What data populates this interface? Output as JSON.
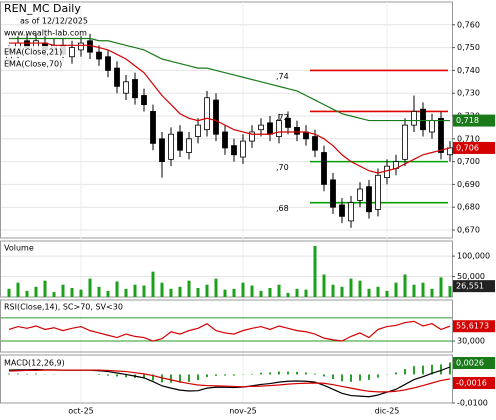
{
  "chart_data": [
    {
      "type": "candlestick",
      "title": "REN_MC Daily",
      "subtitle": "as of 12/12/2025",
      "source": "www.wealth-lab.com",
      "categories": [
        null,
        null,
        null,
        null,
        null,
        null,
        null,
        null,
        "oct-25",
        null,
        null,
        null,
        null,
        null,
        null,
        null,
        null,
        null,
        null,
        null,
        null,
        null,
        null,
        null,
        null,
        null,
        "nov-25",
        null,
        null,
        null,
        null,
        null,
        null,
        null,
        null,
        null,
        null,
        null,
        null,
        null,
        null,
        null,
        "dic-25",
        null,
        null,
        null,
        null,
        null,
        null,
        null
      ],
      "open": [
        0.745,
        0.748,
        0.753,
        0.749,
        0.752,
        0.75,
        0.751,
        0.746,
        0.749,
        0.753,
        0.748,
        0.746,
        0.741,
        0.73,
        0.736,
        0.729,
        0.722,
        0.71,
        0.701,
        0.713,
        0.704,
        0.711,
        0.714,
        0.727,
        0.713,
        0.707,
        0.702,
        0.709,
        0.714,
        0.717,
        0.711,
        0.719,
        0.715,
        0.713,
        0.711,
        0.704,
        0.692,
        0.681,
        0.674,
        0.683,
        0.689,
        0.679,
        0.693,
        0.697,
        0.701,
        0.716,
        0.723,
        0.713,
        0.719,
        0.703
      ],
      "high": [
        0.751,
        0.755,
        0.756,
        0.756,
        0.755,
        0.754,
        0.754,
        0.753,
        0.755,
        0.756,
        0.751,
        0.749,
        0.744,
        0.738,
        0.739,
        0.732,
        0.725,
        0.713,
        0.715,
        0.716,
        0.713,
        0.719,
        0.731,
        0.73,
        0.716,
        0.71,
        0.712,
        0.716,
        0.719,
        0.72,
        0.721,
        0.722,
        0.718,
        0.716,
        0.714,
        0.707,
        0.695,
        0.684,
        0.685,
        0.691,
        0.692,
        0.697,
        0.701,
        0.703,
        0.719,
        0.729,
        0.726,
        0.721,
        0.722,
        0.709
      ],
      "low": [
        0.742,
        0.745,
        0.747,
        0.746,
        0.746,
        0.747,
        0.744,
        0.743,
        0.746,
        0.745,
        0.742,
        0.737,
        0.73,
        0.727,
        0.725,
        0.722,
        0.705,
        0.693,
        0.698,
        0.702,
        0.701,
        0.708,
        0.711,
        0.709,
        0.703,
        0.7,
        0.699,
        0.706,
        0.711,
        0.709,
        0.708,
        0.712,
        0.709,
        0.707,
        0.702,
        0.687,
        0.677,
        0.673,
        0.671,
        0.68,
        0.675,
        0.676,
        0.69,
        0.694,
        0.698,
        0.713,
        0.711,
        0.71,
        0.701,
        0.7
      ],
      "close": [
        0.748,
        0.752,
        0.75,
        0.753,
        0.749,
        0.751,
        0.747,
        0.75,
        0.752,
        0.748,
        0.745,
        0.74,
        0.733,
        0.735,
        0.728,
        0.725,
        0.708,
        0.7,
        0.712,
        0.705,
        0.71,
        0.716,
        0.728,
        0.712,
        0.706,
        0.703,
        0.709,
        0.713,
        0.716,
        0.712,
        0.718,
        0.715,
        0.712,
        0.71,
        0.705,
        0.69,
        0.68,
        0.676,
        0.682,
        0.688,
        0.678,
        0.694,
        0.698,
        0.7,
        0.716,
        0.722,
        0.714,
        0.718,
        0.704,
        0.706
      ],
      "up_color": "#ffffff",
      "down_color": "#000000",
      "series": [
        {
          "name": "EMA(Close,21)",
          "color": "#d40000",
          "last_label": "0,706",
          "values": [
            0.752,
            0.752,
            0.752,
            0.752,
            0.752,
            0.751,
            0.751,
            0.751,
            0.751,
            0.751,
            0.75,
            0.749,
            0.747,
            0.745,
            0.742,
            0.739,
            0.734,
            0.729,
            0.725,
            0.721,
            0.719,
            0.718,
            0.719,
            0.718,
            0.716,
            0.714,
            0.713,
            0.712,
            0.712,
            0.712,
            0.713,
            0.713,
            0.713,
            0.713,
            0.712,
            0.71,
            0.707,
            0.703,
            0.7,
            0.698,
            0.696,
            0.695,
            0.696,
            0.697,
            0.699,
            0.701,
            0.703,
            0.704,
            0.705,
            0.706
          ]
        },
        {
          "name": "EMA(Close,70)",
          "color": "#1a7a1a",
          "last_label": "0,718",
          "values": [
            0.754,
            0.754,
            0.754,
            0.754,
            0.754,
            0.754,
            0.754,
            0.754,
            0.754,
            0.754,
            0.753,
            0.753,
            0.752,
            0.751,
            0.75,
            0.749,
            0.747,
            0.745,
            0.744,
            0.743,
            0.742,
            0.741,
            0.741,
            0.74,
            0.739,
            0.738,
            0.737,
            0.736,
            0.735,
            0.734,
            0.733,
            0.732,
            0.731,
            0.729,
            0.727,
            0.725,
            0.723,
            0.721,
            0.72,
            0.719,
            0.718,
            0.718,
            0.718,
            0.718,
            0.718,
            0.718,
            0.718,
            0.718,
            0.718,
            0.718
          ]
        }
      ],
      "levels": [
        {
          "value": 0.74,
          "label": ",74",
          "color": "#e00000"
        },
        {
          "value": 0.722,
          "label": ",72",
          "color": "#e00000"
        },
        {
          "value": 0.7,
          "label": ",70",
          "color": "#00a000"
        },
        {
          "value": 0.682,
          "label": ",68",
          "color": "#00a000"
        }
      ],
      "ylim": [
        0.6665,
        0.77
      ],
      "yticks": [
        {
          "value": 0.76,
          "label": "0,760"
        },
        {
          "value": 0.75,
          "label": "0,750"
        },
        {
          "value": 0.74,
          "label": "0,740"
        },
        {
          "value": 0.73,
          "label": "0,730"
        },
        {
          "value": 0.72,
          "label": "0,720"
        },
        {
          "value": 0.71,
          "label": "0,710"
        },
        {
          "value": 0.7,
          "label": "0,700"
        },
        {
          "value": 0.69,
          "label": "0,690"
        },
        {
          "value": 0.68,
          "label": "0,680"
        },
        {
          "value": 0.67,
          "label": "0,670"
        }
      ],
      "grid": true
    },
    {
      "type": "bar",
      "title": "Volume",
      "color": "#1aa01a",
      "last_label": "26,551",
      "values": [
        20000,
        35000,
        15000,
        25000,
        40000,
        12000,
        30000,
        22000,
        18000,
        45000,
        25000,
        15000,
        38000,
        20000,
        30000,
        28000,
        62000,
        35000,
        20000,
        25000,
        40000,
        22000,
        30000,
        45000,
        18000,
        20000,
        35000,
        28000,
        15000,
        22000,
        30000,
        10000,
        20000,
        18000,
        125000,
        55000,
        30000,
        25000,
        45000,
        40000,
        20000,
        25000,
        15000,
        35000,
        55000,
        30000,
        35000,
        20000,
        48000,
        26551
      ],
      "ylim": [
        0,
        137000
      ],
      "yticks": [
        {
          "value": 100000,
          "label": "100,000"
        },
        {
          "value": 50000,
          "label": "50,000"
        }
      ],
      "grid": true
    },
    {
      "type": "line",
      "title": "RSI(Close,14), SC>70, SV<30",
      "color": "#d40000",
      "last_label": "55,6173",
      "values": [
        50,
        55,
        52,
        56,
        50,
        53,
        48,
        52,
        55,
        48,
        44,
        40,
        36,
        42,
        38,
        36,
        30,
        34,
        46,
        42,
        48,
        52,
        60,
        48,
        44,
        42,
        48,
        52,
        55,
        50,
        56,
        52,
        48,
        46,
        42,
        35,
        32,
        30,
        38,
        44,
        36,
        50,
        55,
        57,
        62,
        64,
        56,
        60,
        50,
        55.6173
      ],
      "levels": [
        70,
        30
      ],
      "level_color": "#2a9a2a",
      "ylim": [
        11,
        101
      ],
      "yticks": [
        {
          "value": 30,
          "label": "30,000"
        }
      ],
      "grid": false
    },
    {
      "type": "macd",
      "title": "MACD(12,26,9)",
      "series": [
        {
          "color": "#000000",
          "last_label": "0,0026",
          "values": [
            0.0015,
            0.0016,
            0.0016,
            0.0017,
            0.0016,
            0.0016,
            0.0015,
            0.0015,
            0.0015,
            0.0015,
            0.0013,
            0.001,
            0.0005,
            0.0,
            -0.0006,
            -0.0012,
            -0.0025,
            -0.004,
            -0.0048,
            -0.0055,
            -0.0058,
            -0.0057,
            -0.0048,
            -0.0045,
            -0.0045,
            -0.0046,
            -0.0044,
            -0.004,
            -0.0035,
            -0.0032,
            -0.0027,
            -0.0024,
            -0.0023,
            -0.0024,
            -0.0027,
            -0.0038,
            -0.0052,
            -0.0066,
            -0.0074,
            -0.0076,
            -0.0078,
            -0.0072,
            -0.0062,
            -0.0052,
            -0.0035,
            -0.0018,
            -0.0008,
            0.0004,
            0.0014,
            0.0026
          ]
        },
        {
          "color": "#d40000",
          "last_label": "-0,0016",
          "values": [
            0.0012,
            0.0013,
            0.0014,
            0.0014,
            0.0015,
            0.0015,
            0.0015,
            0.0015,
            0.0015,
            0.0015,
            0.0015,
            0.0014,
            0.0012,
            0.001,
            0.0006,
            0.0002,
            -0.0004,
            -0.0012,
            -0.0019,
            -0.0026,
            -0.0032,
            -0.0037,
            -0.0039,
            -0.004,
            -0.0041,
            -0.0042,
            -0.0043,
            -0.0042,
            -0.0041,
            -0.0039,
            -0.0037,
            -0.0034,
            -0.0032,
            -0.0031,
            -0.003,
            -0.0031,
            -0.0036,
            -0.0042,
            -0.0048,
            -0.0054,
            -0.0059,
            -0.0061,
            -0.0061,
            -0.0059,
            -0.0054,
            -0.0047,
            -0.0039,
            -0.003,
            -0.0021,
            -0.0016
          ]
        }
      ],
      "histogram": [
        0.0003,
        0.0003,
        0.0002,
        0.0003,
        0.0001,
        0.0001,
        0,
        0,
        0,
        0,
        -0.0002,
        -0.0004,
        -0.0007,
        -0.001,
        -0.0012,
        -0.0014,
        -0.0021,
        -0.0028,
        -0.0029,
        -0.0029,
        -0.0026,
        -0.002,
        -0.0009,
        -0.0005,
        -0.0004,
        -0.0004,
        -0.0001,
        0.0002,
        0.0006,
        0.0007,
        0.001,
        0.001,
        0.0009,
        0.0007,
        0.0003,
        -0.0007,
        -0.0016,
        -0.0024,
        -0.0026,
        -0.0022,
        -0.0019,
        -0.0011,
        -0.0001,
        0.0007,
        0.0019,
        0.0029,
        0.0031,
        0.0034,
        0.0035,
        0.0042
      ],
      "histogram_color": "#2aa02a",
      "ylim": [
        -0.01,
        0.0068
      ],
      "yticks": [
        {
          "value": -0.01,
          "label": "-0,0100"
        }
      ],
      "grid": false
    }
  ]
}
